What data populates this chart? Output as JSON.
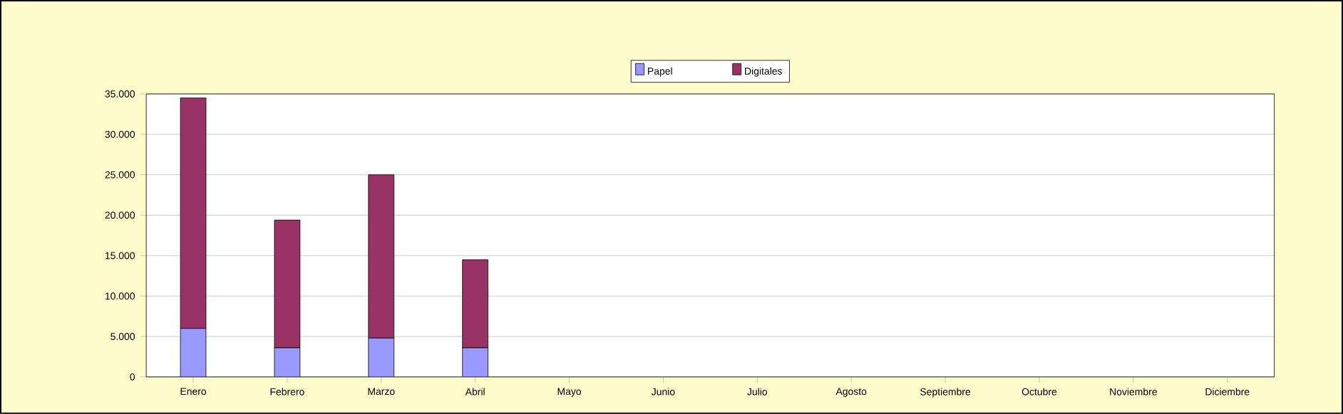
{
  "chart_data": {
    "type": "bar",
    "stacked": true,
    "categories": [
      "Enero",
      "Febrero",
      "Marzo",
      "Abril",
      "Mayo",
      "Junio",
      "Julio",
      "Agosto",
      "Septiembre",
      "Octubre",
      "Noviembre",
      "Diciembre"
    ],
    "series": [
      {
        "name": "Papel",
        "color": "#9999ff",
        "values": [
          6000,
          3600,
          4800,
          3600,
          0,
          0,
          0,
          0,
          0,
          0,
          0,
          0
        ]
      },
      {
        "name": "Digitales",
        "color": "#993366",
        "values": [
          28500,
          15800,
          20200,
          10900,
          0,
          0,
          0,
          0,
          0,
          0,
          0,
          0
        ]
      }
    ],
    "ylim": [
      0,
      35000
    ],
    "yticks": [
      {
        "value": 0,
        "label": "0"
      },
      {
        "value": 5000,
        "label": "5.000"
      },
      {
        "value": 10000,
        "label": "10.000"
      },
      {
        "value": 15000,
        "label": "15.000"
      },
      {
        "value": 20000,
        "label": "20.000"
      },
      {
        "value": 25000,
        "label": "25.000"
      },
      {
        "value": 30000,
        "label": "30.000"
      },
      {
        "value": 35000,
        "label": "35.000"
      }
    ],
    "grid": "y",
    "legend": "top"
  }
}
